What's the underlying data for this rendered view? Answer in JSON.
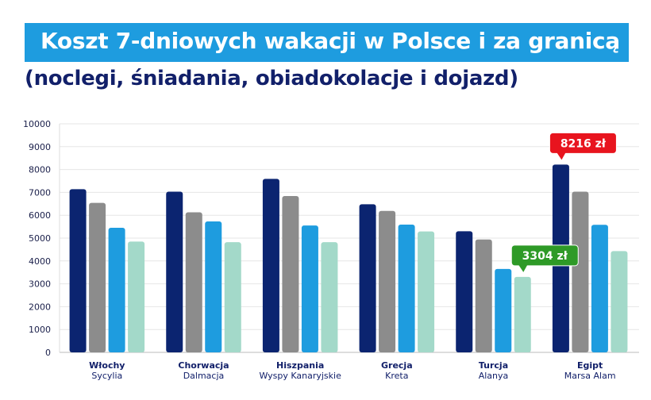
{
  "chart_data": {
    "type": "bar",
    "title": "Koszt 7-dniowych wakacji w Polsce i za granicą",
    "subtitle": "(noclegi, śniadania, obiadokolacje i dojazd)",
    "xlabel": "",
    "ylabel": "",
    "ylim": [
      0,
      10000
    ],
    "yticks": [
      0,
      1000,
      2000,
      3000,
      4000,
      5000,
      6000,
      7000,
      8000,
      9000,
      10000
    ],
    "grid": true,
    "categories": [
      "Włochy",
      "Chorwacja",
      "Hiszpania",
      "Grecja",
      "Turcja",
      "Egipt"
    ],
    "subcategories": [
      "Sycylia",
      "Dalmacja",
      "Wyspy Kanaryjskie",
      "Kreta",
      "Alanya",
      "Marsa Alam"
    ],
    "series": [
      {
        "name": "",
        "color": "#0b2470",
        "values": [
          7140,
          7030,
          7590,
          6480,
          5300,
          8216
        ]
      },
      {
        "name": "",
        "color": "#8c8c8c",
        "values": [
          6540,
          6130,
          6840,
          6190,
          4940,
          7030
        ]
      },
      {
        "name": "",
        "color": "#1e9cdf",
        "values": [
          5450,
          5730,
          5550,
          5590,
          3650,
          5580
        ]
      },
      {
        "name": "",
        "color": "#a3d9c9",
        "values": [
          4850,
          4820,
          4820,
          5290,
          3304,
          4430
        ]
      }
    ],
    "annotations": [
      {
        "text": "8216 zł",
        "category": "Egipt",
        "series": 0,
        "color": "#e8141e"
      },
      {
        "text": "3304 zł",
        "category": "Turcja",
        "series": 3,
        "color": "#2e9a27"
      }
    ]
  }
}
